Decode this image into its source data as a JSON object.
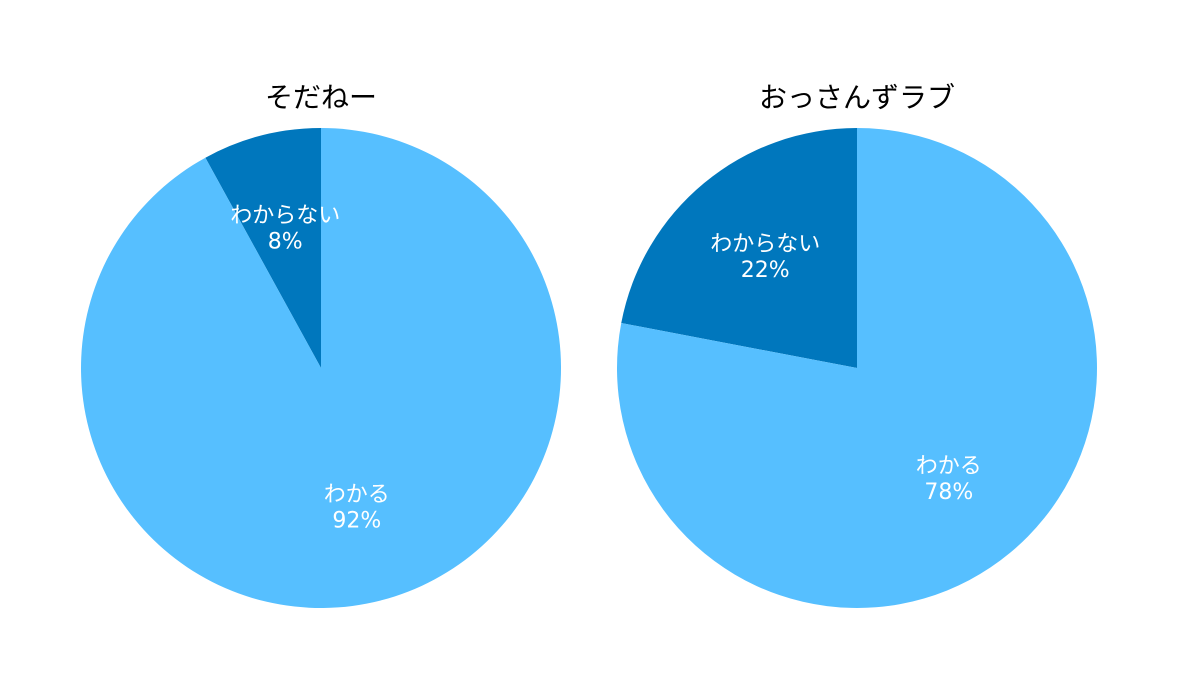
{
  "chart_data": [
    {
      "type": "pie",
      "title": "そだねー",
      "slices": [
        {
          "label": "わからない",
          "value": 8,
          "display": "8%",
          "color": "#0077BD"
        },
        {
          "label": "わかる",
          "value": 92,
          "display": "92%",
          "color": "#56BFFF"
        }
      ]
    },
    {
      "type": "pie",
      "title": "おっさんずラブ",
      "slices": [
        {
          "label": "わからない",
          "value": 22,
          "display": "22%",
          "color": "#0077BD"
        },
        {
          "label": "わかる",
          "value": 78,
          "display": "78%",
          "color": "#56BFFF"
        }
      ]
    }
  ]
}
